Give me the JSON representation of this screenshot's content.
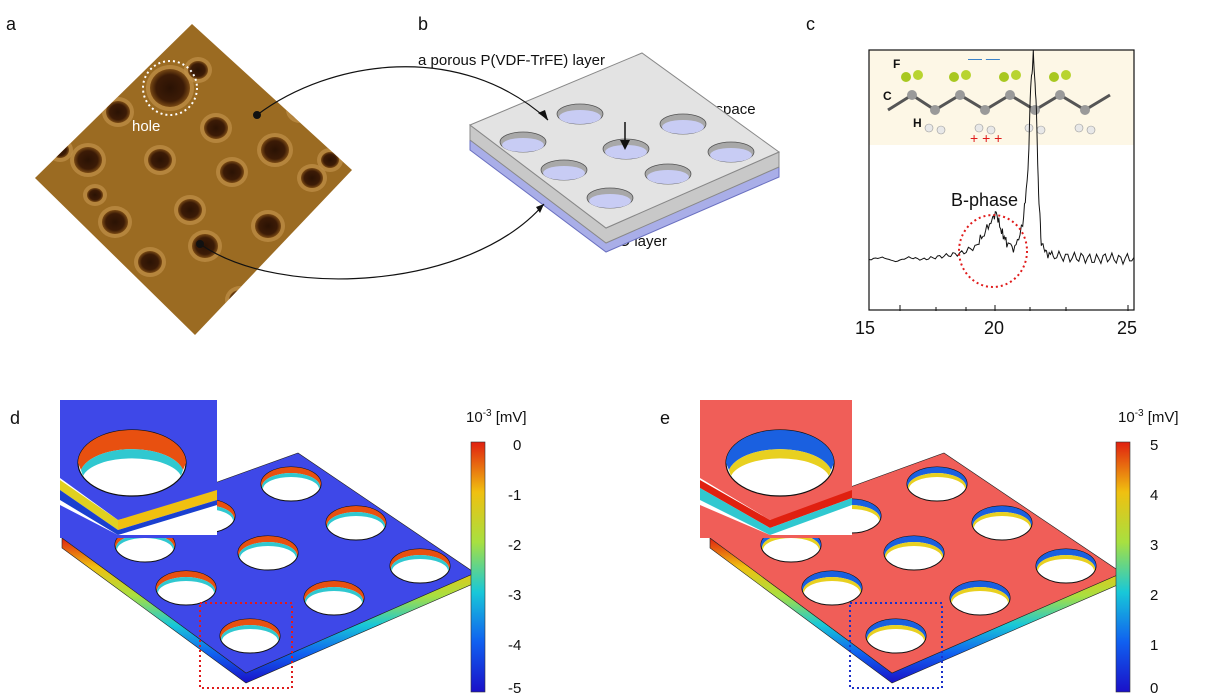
{
  "panels": {
    "a": {
      "letter": "a",
      "hole_label": "hole"
    },
    "b": {
      "letter": "b",
      "porous_label": "a porous P(VDF-TrFE) layer",
      "empty_label": "vertically empty space",
      "zno_label": "ZnO layer"
    },
    "c": {
      "letter": "c",
      "phase_label": "B-phase",
      "atom_F": "F",
      "atom_C": "C",
      "atom_H": "H",
      "charge_minus": "— —",
      "charge_plus": "+ + +"
    },
    "d": {
      "letter": "d",
      "colorbar_title_base": "10",
      "colorbar_title_exp": "-3",
      "colorbar_title_unit": " [mV]",
      "ticks": [
        "0",
        "-1",
        "-2",
        "-3",
        "-4",
        "-5"
      ]
    },
    "e": {
      "letter": "e",
      "colorbar_title_base": "10",
      "colorbar_title_exp": "-3",
      "colorbar_title_unit": " [mV]",
      "ticks": [
        "5",
        "4",
        "3",
        "2",
        "1",
        "0"
      ]
    }
  },
  "chart_data": {
    "type": "line",
    "title": "",
    "xlabel": "",
    "ylabel": "",
    "xlim": [
      15,
      25
    ],
    "x_ticks": [
      "15",
      "20",
      "25"
    ],
    "annotation": "B-phase",
    "series": [
      {
        "x": [
          15,
          15.5,
          16,
          16.5,
          17,
          17.5,
          18,
          18.5,
          19,
          19.3,
          19.6,
          19.8,
          20,
          20.2,
          20.5,
          20.8,
          21,
          21.1,
          21.2,
          21.3,
          21.4,
          21.5,
          21.7,
          22,
          22.5,
          23,
          23.5,
          24,
          24.5,
          25
        ],
        "values": [
          0.04,
          0.05,
          0.03,
          0.05,
          0.04,
          0.05,
          0.06,
          0.07,
          0.1,
          0.15,
          0.22,
          0.26,
          0.17,
          0.12,
          0.09,
          0.2,
          0.45,
          0.85,
          1.0,
          0.8,
          0.35,
          0.12,
          0.07,
          0.06,
          0.05,
          0.05,
          0.04,
          0.05,
          0.04,
          0.05
        ]
      }
    ]
  }
}
